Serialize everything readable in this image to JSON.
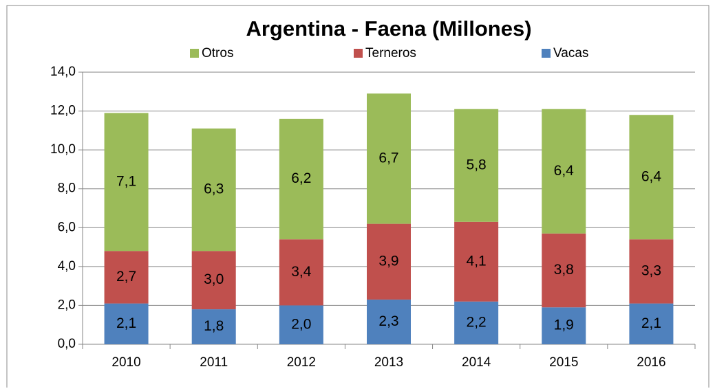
{
  "chart_data": {
    "type": "stacked_bar",
    "title": "Argentina - Faena (Millones)",
    "categories": [
      "2010",
      "2011",
      "2012",
      "2013",
      "2014",
      "2015",
      "2016"
    ],
    "series": [
      {
        "name": "Otros",
        "color": "#9bbb59",
        "values": [
          7.1,
          6.3,
          6.2,
          6.7,
          5.8,
          6.4,
          6.4
        ],
        "value_labels": [
          "7,1",
          "6,3",
          "6,2",
          "6,7",
          "5,8",
          "6,4",
          "6,4"
        ]
      },
      {
        "name": "Terneros",
        "color": "#c0504d",
        "values": [
          2.7,
          3.0,
          3.4,
          3.9,
          4.1,
          3.8,
          3.3
        ],
        "value_labels": [
          "2,7",
          "3,0",
          "3,4",
          "3,9",
          "4,1",
          "3,8",
          "3,3"
        ]
      },
      {
        "name": "Vacas",
        "color": "#4f81bd",
        "values": [
          2.1,
          1.8,
          2.0,
          2.3,
          2.2,
          1.9,
          2.1
        ],
        "value_labels": [
          "2,1",
          "1,8",
          "2,0",
          "2,3",
          "2,2",
          "1,9",
          "2,1"
        ]
      }
    ],
    "ylim": [
      0,
      14
    ],
    "yticks": [
      {
        "value": 0,
        "label": "0,0"
      },
      {
        "value": 2,
        "label": "2,0"
      },
      {
        "value": 4,
        "label": "4,0"
      },
      {
        "value": 6,
        "label": "6,0"
      },
      {
        "value": 8,
        "label": "8,0"
      },
      {
        "value": 10,
        "label": "10,0"
      },
      {
        "value": 12,
        "label": "12,0"
      },
      {
        "value": 14,
        "label": "14,0"
      }
    ],
    "grid": true,
    "legend": "top"
  }
}
